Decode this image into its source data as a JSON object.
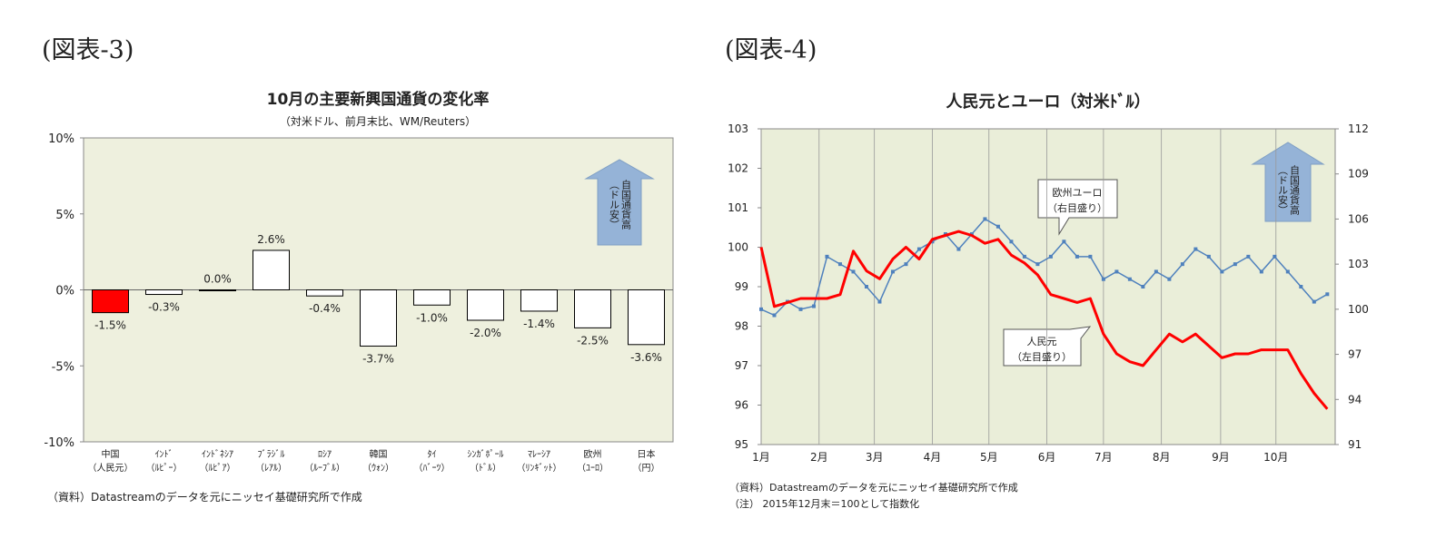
{
  "chart_data": [
    {
      "type": "bar",
      "figure_label": "(図表-3)",
      "title": "10月の主要新興国通貨の変化率",
      "subtitle": "（対米ドル、前月末比、WM/Reuters）",
      "categories": [
        [
          "中国",
          "（人民元）"
        ],
        [
          "ｲﾝﾄﾞ",
          "（ﾙﾋﾟｰ）"
        ],
        [
          "ｲﾝﾄﾞﾈｼｱ",
          "（ﾙﾋﾟｱ）"
        ],
        [
          "ﾌﾞﾗｼﾞﾙ",
          "（ﾚｱﾙ）"
        ],
        [
          "ﾛｼｱ",
          "（ﾙｰﾌﾞﾙ）"
        ],
        [
          "韓国",
          "（ｳｫﾝ）"
        ],
        [
          "ﾀｲ",
          "（ﾊﾞｰﾂ）"
        ],
        [
          "ｼﾝｶﾞﾎﾟｰﾙ",
          "（ﾄﾞﾙ）"
        ],
        [
          "ﾏﾚｰｼｱ",
          "（ﾘﾝｷﾞｯﾄ）"
        ],
        [
          "欧州",
          "（ﾕｰﾛ）"
        ],
        [
          "日本",
          "（円）"
        ]
      ],
      "values": [
        -1.5,
        -0.3,
        0.0,
        2.6,
        -0.4,
        -3.7,
        -1.0,
        -2.0,
        -1.4,
        -2.5,
        -3.6
      ],
      "value_labels": [
        "-1.5%",
        "-0.3%",
        "0.0%",
        "2.6%",
        "-0.4%",
        "-3.7%",
        "-1.0%",
        "-2.0%",
        "-1.4%",
        "-2.5%",
        "-3.6%"
      ],
      "colors": [
        "#ff0000",
        "#ffffff",
        "#ffffff",
        "#ffffff",
        "#ffffff",
        "#ffffff",
        "#ffffff",
        "#ffffff",
        "#ffffff",
        "#ffffff",
        "#ffffff"
      ],
      "ylim": [
        -10,
        10
      ],
      "yticks": [
        {
          "value": -10,
          "label": "-10%"
        },
        {
          "value": -5,
          "label": "-5%"
        },
        {
          "value": 0,
          "label": "0%"
        },
        {
          "value": 5,
          "label": "5%"
        },
        {
          "value": 10,
          "label": "10%"
        }
      ],
      "annotation": [
        "自国通貨高",
        "（ドル安）"
      ],
      "notes": [
        "（資料）Datastreamのデータを元にニッセイ基礎研究所で作成"
      ]
    },
    {
      "type": "line",
      "figure_label": "(図表-4)",
      "title": "人民元とユーロ（対米ﾄﾞﾙ）",
      "xlim": [
        0,
        43.6
      ],
      "xticks": [
        {
          "value": 0,
          "label": "1月"
        },
        {
          "value": 4.4,
          "label": "2月"
        },
        {
          "value": 8.6,
          "label": "3月"
        },
        {
          "value": 13,
          "label": "4月"
        },
        {
          "value": 17.3,
          "label": "5月"
        },
        {
          "value": 21.7,
          "label": "6月"
        },
        {
          "value": 26,
          "label": "7月"
        },
        {
          "value": 30.4,
          "label": "8月"
        },
        {
          "value": 34.9,
          "label": "9月"
        },
        {
          "value": 39.1,
          "label": "10月"
        }
      ],
      "ylim": [
        95,
        103
      ],
      "yticks": [
        95,
        96,
        97,
        98,
        99,
        100,
        101,
        102,
        103
      ],
      "y2lim": [
        91,
        112
      ],
      "y2ticks": [
        91,
        94,
        97,
        100,
        103,
        106,
        109,
        112
      ],
      "grid": "x",
      "series": [
        {
          "name": [
            "欧州ユーロ",
            "（右目盛り）"
          ],
          "color": "#4f81bd",
          "axis": "y2",
          "marker": "square",
          "values": [
            100.0,
            99.6,
            100.5,
            100.0,
            100.2,
            103.5,
            103.0,
            102.5,
            101.5,
            100.5,
            102.5,
            103.0,
            104.0,
            104.5,
            105.0,
            104.0,
            105.0,
            106.0,
            105.5,
            104.5,
            103.5,
            103.0,
            103.5,
            104.5,
            103.5,
            103.5,
            102.0,
            102.5,
            102.0,
            101.5,
            102.5,
            102.0,
            103.0,
            104.0,
            103.5,
            102.5,
            103.0,
            103.5,
            102.5,
            103.5,
            102.5,
            101.5,
            100.5,
            101.0
          ]
        },
        {
          "name": [
            "人民元",
            "（左目盛り）"
          ],
          "color": "#ff0000",
          "values": [
            100.0,
            98.5,
            98.6,
            98.7,
            98.7,
            98.7,
            98.8,
            99.9,
            99.4,
            99.2,
            99.7,
            100.0,
            99.7,
            100.2,
            100.3,
            100.4,
            100.3,
            100.1,
            100.2,
            99.8,
            99.6,
            99.3,
            98.8,
            98.7,
            98.6,
            98.7,
            97.8,
            97.3,
            97.1,
            97.0,
            97.4,
            97.8,
            97.6,
            97.8,
            97.5,
            97.2,
            97.3,
            97.3,
            97.4,
            97.4,
            97.4,
            96.8,
            96.3,
            95.9
          ]
        }
      ],
      "annotation": [
        "自国通貨高",
        "（ドル安）"
      ],
      "notes": [
        "（資料）Datastreamのデータを元にニッセイ基礎研究所で作成",
        "（注） 2015年12月末＝100として指数化"
      ]
    }
  ]
}
